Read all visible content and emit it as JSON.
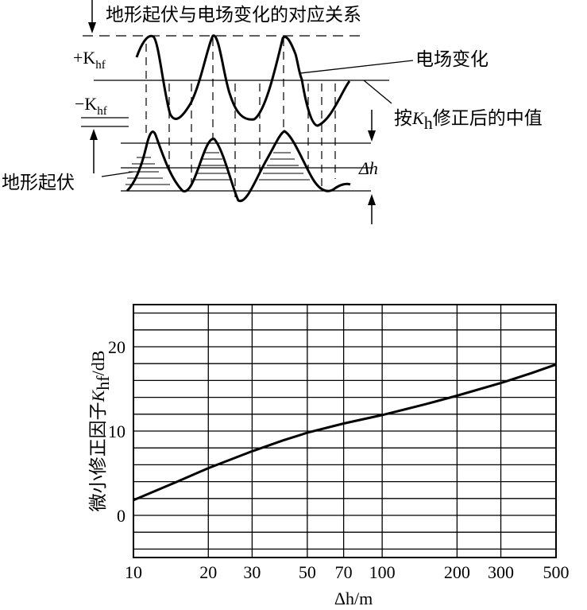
{
  "diagram": {
    "title": "地形起伏与电场变化的对应关系",
    "plus_k": "+K",
    "minus_k": "−K",
    "k_sub": "hf",
    "field_change": "电场变化",
    "median_prefix": "按",
    "median_k": "K",
    "median_sub": "h",
    "median_suffix": "修正后的中值",
    "terrain": "地形起伏",
    "delta_h": "Δh"
  },
  "chart_data": {
    "type": "line",
    "xscale": "log",
    "xlim": [
      10,
      500
    ],
    "ylim": [
      -5,
      25
    ],
    "xticks": [
      10,
      20,
      30,
      50,
      70,
      100,
      200,
      300,
      500
    ],
    "xtick_labels": [
      "10",
      "20",
      "30",
      "50",
      "70",
      "100",
      "200",
      "300",
      "500"
    ],
    "yticks": [
      0,
      10,
      20
    ],
    "ytick_labels": [
      "0",
      "10",
      "20"
    ],
    "xlabel": "Δh/m",
    "ylabel_text": "微小修正因子",
    "ylabel_k": "K",
    "ylabel_sub": "hf",
    "ylabel_unit": "/dB",
    "grid": true,
    "series": [
      {
        "x": [
          10,
          15,
          20,
          30,
          40,
          50,
          70,
          100,
          150,
          200,
          300,
          400,
          500
        ],
        "y": [
          1.8,
          4.0,
          5.6,
          7.6,
          8.9,
          9.8,
          10.9,
          11.9,
          13.2,
          14.2,
          15.7,
          16.9,
          17.9
        ]
      }
    ]
  }
}
